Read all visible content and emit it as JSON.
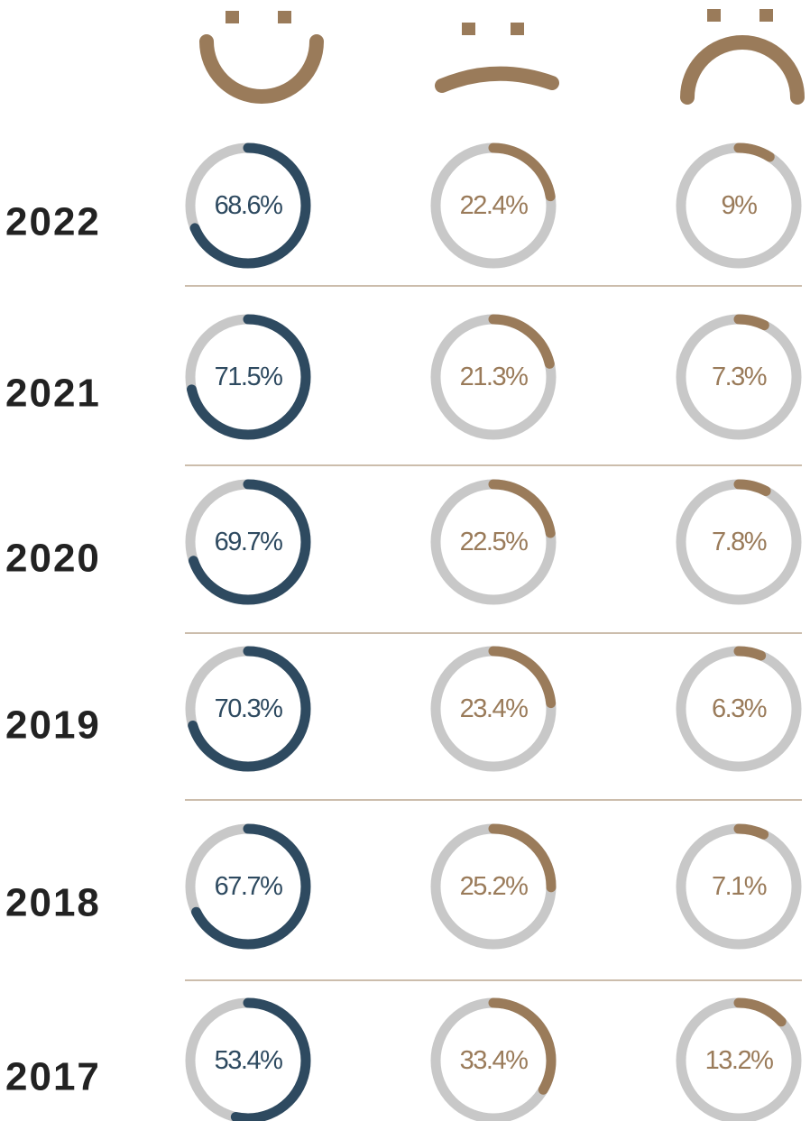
{
  "chart_data": {
    "type": "donut-grid",
    "categories": [
      "2022",
      "2021",
      "2020",
      "2019",
      "2018",
      "2017"
    ],
    "track_color": "#c8c8c8",
    "series": [
      {
        "color": "#2e4a60",
        "values": [
          68.6,
          71.5,
          69.7,
          70.3,
          67.7,
          53.4
        ],
        "value_labels": [
          "68.6%",
          "71.5%",
          "69.7%",
          "70.3%",
          "67.7%",
          "53.4%"
        ]
      },
      {
        "color": "#9a7b5a",
        "values": [
          22.4,
          21.3,
          22.5,
          23.4,
          25.2,
          33.4
        ],
        "value_labels": [
          "22.4%",
          "21.3%",
          "22.5%",
          "23.4%",
          "25.2%",
          "33.4%"
        ]
      },
      {
        "color": "#9a7b5a",
        "values": [
          9,
          7.3,
          7.8,
          6.3,
          7.1,
          13.2
        ],
        "value_labels": [
          "9%",
          "7.3%",
          "7.8%",
          "6.3%",
          "7.1%",
          "13.2%"
        ]
      }
    ]
  }
}
